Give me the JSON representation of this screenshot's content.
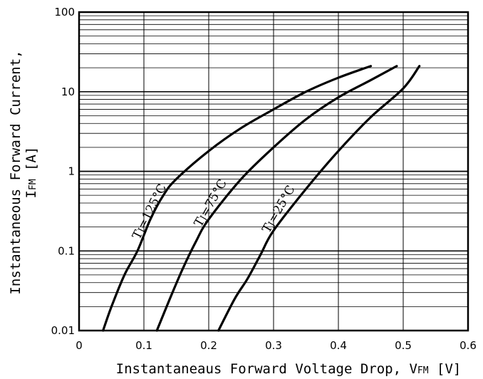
{
  "chart_data": {
    "type": "line",
    "title": "",
    "xlabel": {
      "main": "Instantaneaus Forward Voltage Drop, V",
      "sub": "FM",
      "unit": " [V]"
    },
    "ylabel": {
      "line1": "Instantaneous Forward Current,",
      "line2_main": "I",
      "line2_sub": "FM",
      "line2_unit": " [A]"
    },
    "x_axis": {
      "range": [
        0,
        0.6
      ],
      "ticks": [
        0,
        0.1,
        0.2,
        0.3,
        0.4,
        0.5,
        0.6
      ],
      "tick_labels": [
        "0",
        "0.1",
        "0.2",
        "0.3",
        "0.4",
        "0.5",
        "0.6"
      ]
    },
    "y_axis": {
      "scale": "log",
      "range": [
        0.01,
        100
      ],
      "ticks": [
        0.01,
        0.1,
        1,
        10,
        100
      ],
      "tick_labels": [
        "0.01",
        "0.1",
        "1",
        "10",
        "100"
      ]
    },
    "grid": true,
    "series": [
      {
        "name_main": "T",
        "name_sub": "J",
        "name_rest": "=125°C",
        "points": [
          [
            0.037,
            0.01
          ],
          [
            0.05,
            0.02
          ],
          [
            0.07,
            0.05
          ],
          [
            0.09,
            0.1
          ],
          [
            0.11,
            0.25
          ],
          [
            0.13,
            0.5
          ],
          [
            0.15,
            0.8
          ],
          [
            0.2,
            1.8
          ],
          [
            0.25,
            3.5
          ],
          [
            0.3,
            6
          ],
          [
            0.35,
            10
          ],
          [
            0.4,
            15
          ],
          [
            0.45,
            21
          ]
        ]
      },
      {
        "name_main": "T",
        "name_sub": "J",
        "name_rest": "=75°C",
        "points": [
          [
            0.12,
            0.01
          ],
          [
            0.14,
            0.025
          ],
          [
            0.16,
            0.06
          ],
          [
            0.18,
            0.13
          ],
          [
            0.2,
            0.25
          ],
          [
            0.25,
            0.8
          ],
          [
            0.3,
            2
          ],
          [
            0.35,
            4.5
          ],
          [
            0.4,
            8.5
          ],
          [
            0.45,
            14
          ],
          [
            0.49,
            21
          ]
        ]
      },
      {
        "name_main": "T",
        "name_sub": "J",
        "name_rest": "=25°C",
        "points": [
          [
            0.215,
            0.01
          ],
          [
            0.24,
            0.025
          ],
          [
            0.26,
            0.045
          ],
          [
            0.28,
            0.09
          ],
          [
            0.3,
            0.18
          ],
          [
            0.35,
            0.6
          ],
          [
            0.4,
            1.8
          ],
          [
            0.45,
            4.8
          ],
          [
            0.5,
            11
          ],
          [
            0.525,
            21
          ]
        ]
      }
    ],
    "line_color": "#000000"
  }
}
